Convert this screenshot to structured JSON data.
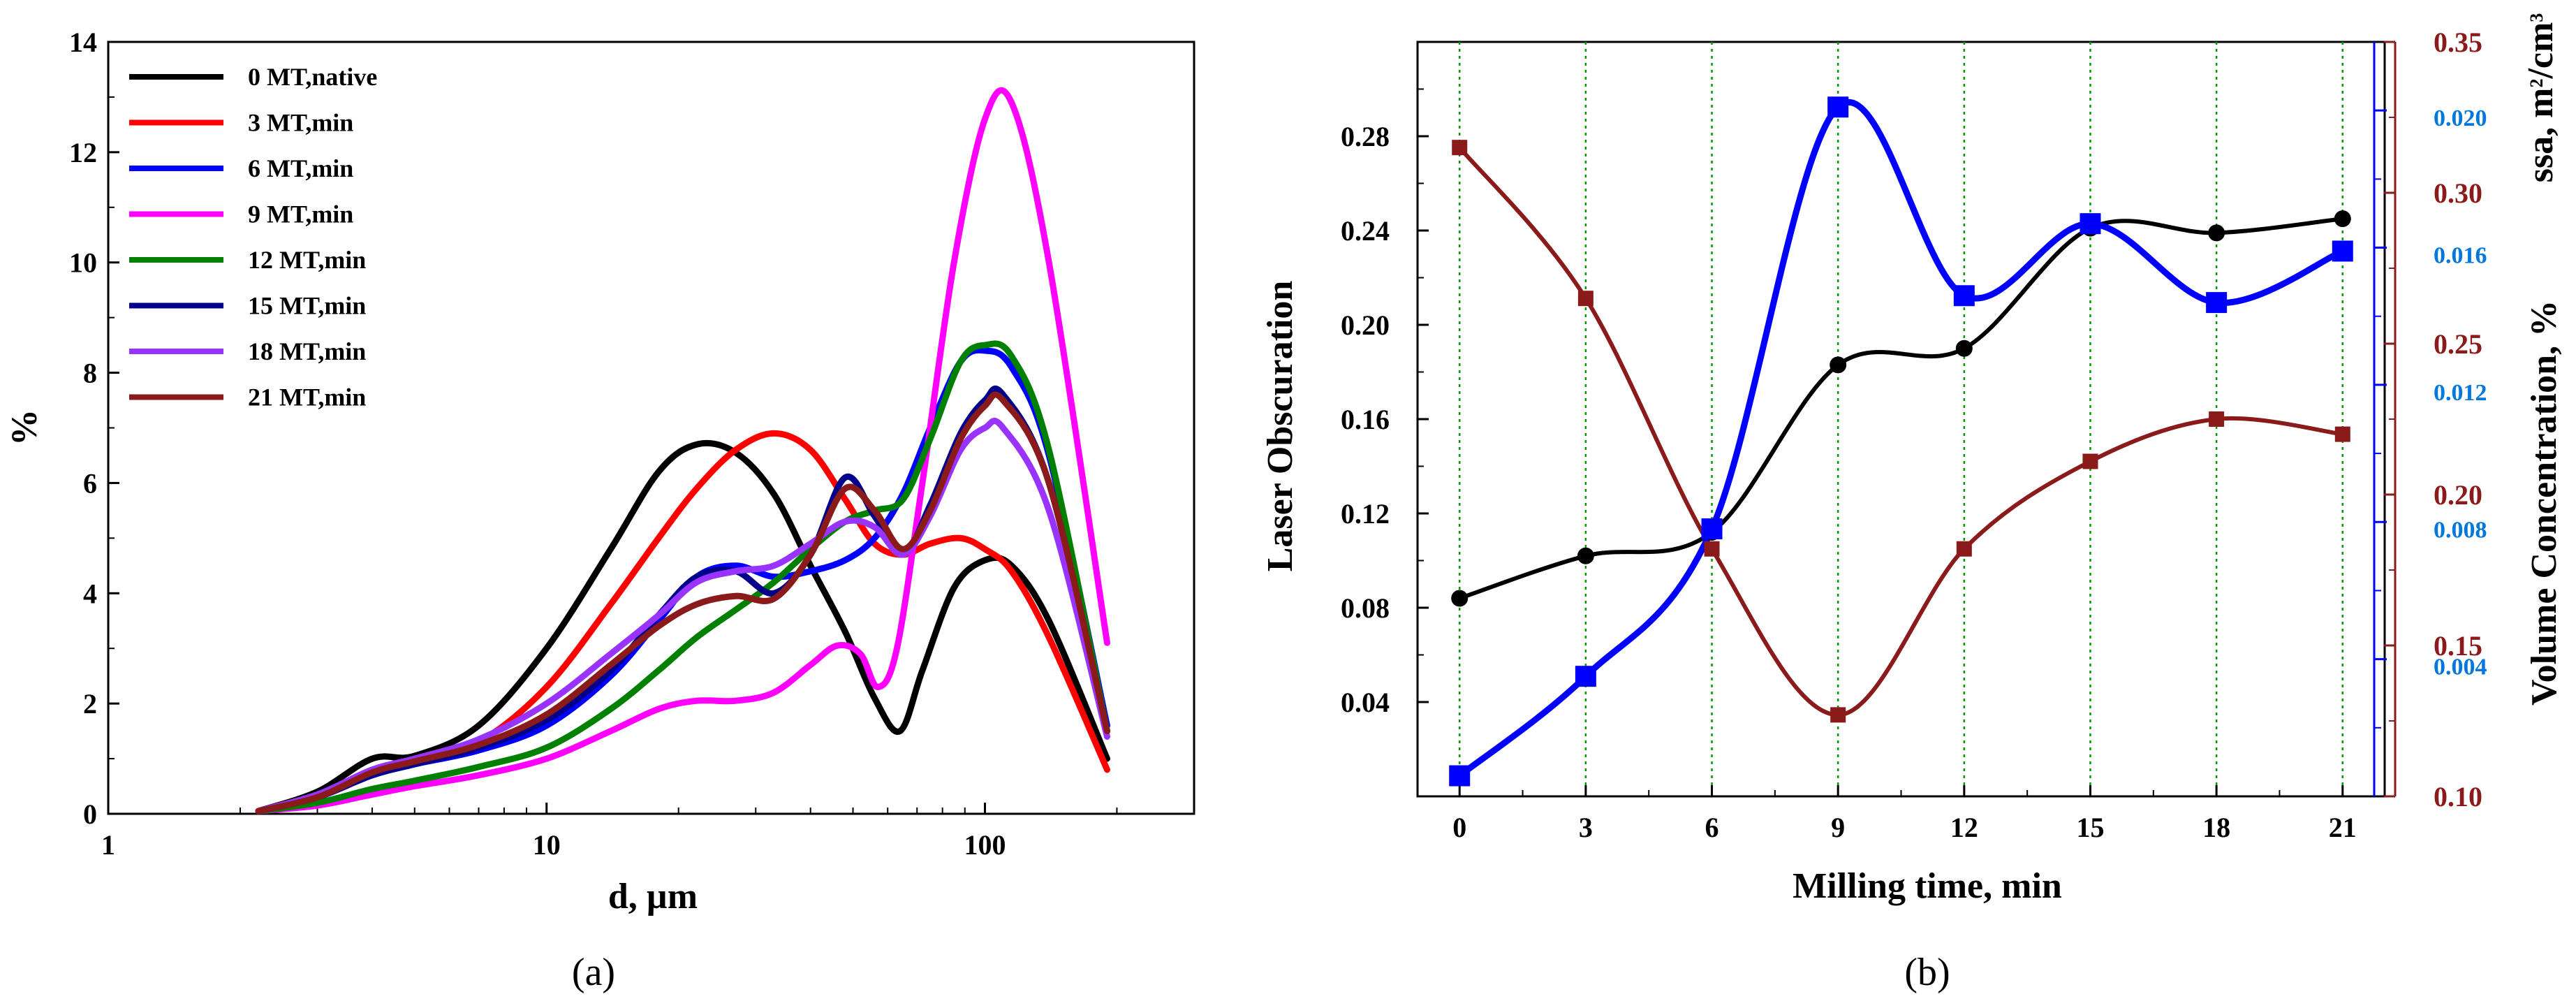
{
  "chart_data": [
    {
      "panel": "a",
      "caption": "(a)",
      "type": "line",
      "xscale": "log",
      "xlabel": "d, µm",
      "ylabel": "%",
      "xlim": [
        1,
        300
      ],
      "ylim": [
        0,
        14
      ],
      "xticks": [
        {
          "value": 1,
          "label": "1"
        },
        {
          "value": 10,
          "label": "10"
        },
        {
          "value": 100,
          "label": "100"
        }
      ],
      "yticks": [
        {
          "value": 0,
          "label": "0"
        },
        {
          "value": 2,
          "label": "2"
        },
        {
          "value": 4,
          "label": "4"
        },
        {
          "value": 6,
          "label": "6"
        },
        {
          "value": 8,
          "label": "8"
        },
        {
          "value": 10,
          "label": "10"
        },
        {
          "value": 12,
          "label": "12"
        },
        {
          "value": 14,
          "label": "14"
        }
      ],
      "legend_position": "top-left",
      "series": [
        {
          "name": "0 MT,native",
          "color": "#000000",
          "x": [
            2.2,
            3,
            4,
            5,
            7,
            10,
            14,
            18,
            22,
            27,
            33,
            40,
            48,
            56,
            64,
            72,
            85,
            100,
            115,
            140,
            190
          ],
          "values": [
            0.05,
            0.4,
            1.0,
            1.05,
            1.6,
            3.0,
            4.8,
            6.2,
            6.7,
            6.55,
            5.8,
            4.5,
            3.3,
            2.1,
            1.5,
            2.6,
            4.1,
            4.6,
            4.5,
            3.5,
            1.0
          ]
        },
        {
          "name": "3 MT,min",
          "color": "#ff0000",
          "x": [
            2.2,
            3,
            4,
            5,
            7,
            10,
            14,
            18,
            22,
            27,
            33,
            40,
            48,
            56,
            65,
            75,
            88,
            100,
            115,
            140,
            190
          ],
          "values": [
            0.05,
            0.3,
            0.75,
            0.95,
            1.3,
            2.3,
            3.8,
            5.0,
            5.9,
            6.6,
            6.9,
            6.6,
            5.7,
            4.9,
            4.7,
            4.9,
            5.0,
            4.8,
            4.4,
            3.2,
            0.8
          ]
        },
        {
          "name": "6 MT,min",
          "color": "#0000ff",
          "x": [
            2.2,
            3,
            4,
            5,
            7,
            10,
            14,
            18,
            22,
            27,
            33,
            40,
            48,
            56,
            65,
            75,
            88,
            100,
            115,
            140,
            190
          ],
          "values": [
            0.05,
            0.3,
            0.7,
            0.9,
            1.15,
            1.6,
            2.5,
            3.5,
            4.3,
            4.5,
            4.3,
            4.4,
            4.6,
            5.0,
            5.8,
            7.0,
            8.2,
            8.4,
            8.1,
            6.5,
            1.6
          ]
        },
        {
          "name": "9 MT,min",
          "color": "#ff00ff",
          "x": [
            2.2,
            3,
            4,
            5,
            7,
            10,
            14,
            18,
            22,
            27,
            33,
            40,
            46,
            52,
            57,
            63,
            72,
            85,
            100,
            115,
            140,
            190
          ],
          "values": [
            0.05,
            0.15,
            0.35,
            0.5,
            0.7,
            1.0,
            1.5,
            1.9,
            2.05,
            2.05,
            2.2,
            2.7,
            3.05,
            2.9,
            2.3,
            3.0,
            6.0,
            10.0,
            12.6,
            12.9,
            10.0,
            3.1
          ]
        },
        {
          "name": "12 MT,min",
          "color": "#008000",
          "x": [
            2.2,
            3,
            4,
            5,
            7,
            10,
            14,
            18,
            22,
            27,
            33,
            40,
            48,
            56,
            65,
            75,
            88,
            100,
            115,
            140,
            190
          ],
          "values": [
            0.05,
            0.2,
            0.45,
            0.6,
            0.85,
            1.2,
            1.9,
            2.6,
            3.2,
            3.7,
            4.2,
            4.8,
            5.3,
            5.5,
            5.7,
            6.8,
            8.2,
            8.5,
            8.3,
            6.6,
            1.5
          ]
        },
        {
          "name": "15 MT,min",
          "color": "#00008b",
          "x": [
            2.2,
            3,
            4,
            5,
            7,
            10,
            14,
            18,
            22,
            27,
            33,
            40,
            48,
            56,
            65,
            75,
            88,
            100,
            110,
            140,
            190
          ],
          "values": [
            0.05,
            0.3,
            0.7,
            0.9,
            1.2,
            1.7,
            2.6,
            3.6,
            4.3,
            4.4,
            4.0,
            4.7,
            6.1,
            5.4,
            4.7,
            5.6,
            6.9,
            7.5,
            7.6,
            6.0,
            1.5
          ]
        },
        {
          "name": "18 MT,min",
          "color": "#9933ff",
          "x": [
            2.2,
            3,
            4,
            5,
            7,
            10,
            14,
            18,
            22,
            27,
            33,
            40,
            48,
            56,
            65,
            75,
            88,
            100,
            110,
            140,
            190
          ],
          "values": [
            0.05,
            0.35,
            0.8,
            1.0,
            1.35,
            2.0,
            2.9,
            3.6,
            4.2,
            4.4,
            4.5,
            4.9,
            5.3,
            5.2,
            4.7,
            5.4,
            6.6,
            7.0,
            7.0,
            5.5,
            1.4
          ]
        },
        {
          "name": "21 MT,min",
          "color": "#8b1a1a",
          "x": [
            2.2,
            3,
            4,
            5,
            7,
            10,
            14,
            18,
            22,
            27,
            33,
            40,
            48,
            56,
            65,
            75,
            88,
            100,
            110,
            140,
            190
          ],
          "values": [
            0.05,
            0.3,
            0.75,
            0.95,
            1.25,
            1.8,
            2.7,
            3.4,
            3.8,
            3.95,
            3.9,
            4.7,
            5.9,
            5.5,
            4.8,
            5.5,
            6.8,
            7.4,
            7.5,
            6.0,
            1.5
          ]
        }
      ]
    },
    {
      "panel": "b",
      "caption": "(b)",
      "type": "line",
      "xlabel": "Milling time, min",
      "x": [
        0,
        3,
        6,
        9,
        12,
        15,
        18,
        21
      ],
      "xlim": [
        -1,
        22
      ],
      "xticks": [
        0,
        3,
        6,
        9,
        12,
        15,
        18,
        21
      ],
      "grid": "vertical dotted green lines at each x tick",
      "axes": [
        {
          "id": "left",
          "label": "Laser Obscuration",
          "ylim": [
            0.0,
            0.32
          ],
          "ticks": [
            {
              "value": 0.04,
              "label": "0.04"
            },
            {
              "value": 0.08,
              "label": "0.08"
            },
            {
              "value": 0.12,
              "label": "0.12"
            },
            {
              "value": 0.16,
              "label": "0.16"
            },
            {
              "value": 0.2,
              "label": "0.20"
            },
            {
              "value": 0.24,
              "label": "0.24"
            },
            {
              "value": 0.28,
              "label": "0.28"
            }
          ],
          "color": "#000000"
        },
        {
          "id": "right-ssa",
          "label": "ssa, m²/cm³",
          "label_main": "ssa, m",
          "label_sup1": "2",
          "label_mid": "/cm",
          "label_sup2": "3",
          "ylim": [
            0.1,
            0.35
          ],
          "ticks": [
            {
              "value": 0.1,
              "label": "0.10"
            },
            {
              "value": 0.15,
              "label": "0.15"
            },
            {
              "value": 0.2,
              "label": "0.20"
            },
            {
              "value": 0.25,
              "label": "0.25"
            },
            {
              "value": 0.3,
              "label": "0.30"
            },
            {
              "value": 0.35,
              "label": "0.35"
            }
          ],
          "color": "#8b1a1a"
        },
        {
          "id": "right-vol",
          "label": "Volume Concentration, %",
          "ylim": [
            0.0,
            0.022
          ],
          "ticks": [
            {
              "value": 0.004,
              "label": "0.004"
            },
            {
              "value": 0.008,
              "label": "0.008"
            },
            {
              "value": 0.012,
              "label": "0.012"
            },
            {
              "value": 0.016,
              "label": "0.016"
            },
            {
              "value": 0.02,
              "label": "0.020"
            }
          ],
          "color": "#0055ff"
        }
      ],
      "series": [
        {
          "name": "Laser Obscuration",
          "axis": "left",
          "color": "#000000",
          "marker": "circle",
          "values": [
            0.084,
            0.102,
            0.112,
            0.183,
            0.19,
            0.241,
            0.239,
            0.245
          ]
        },
        {
          "name": "ssa",
          "axis": "right-ssa",
          "color": "#8b1a1a",
          "marker": "square",
          "values": [
            0.315,
            0.265,
            0.182,
            0.127,
            0.182,
            0.211,
            0.225,
            0.22
          ]
        },
        {
          "name": "Volume Concentration",
          "axis": "right-vol",
          "color": "#0000ff",
          "marker": "square",
          "values": [
            0.0006,
            0.0035,
            0.0078,
            0.0201,
            0.0146,
            0.0167,
            0.0144,
            0.0159
          ]
        }
      ]
    }
  ]
}
